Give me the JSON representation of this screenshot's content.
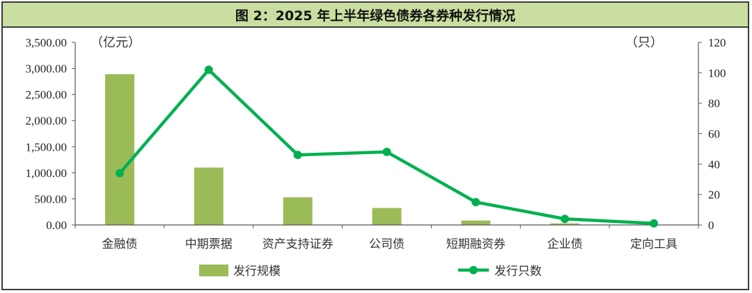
{
  "title": "图 2：2025 年上半年绿色债券各券种发行情况",
  "chart_data": {
    "type": "bar+line",
    "categories": [
      "金融债",
      "中期票据",
      "资产支持证券",
      "公司债",
      "短期融资券",
      "企业债",
      "定向工具"
    ],
    "series": [
      {
        "name": "发行规模",
        "type": "bar",
        "axis": "left",
        "color": "#9bbb59",
        "values": [
          2890,
          1100,
          530,
          325,
          85,
          30,
          5
        ]
      },
      {
        "name": "发行只数",
        "type": "line",
        "axis": "right",
        "color": "#00b050",
        "values": [
          34,
          102,
          46,
          48,
          15,
          4,
          1
        ]
      }
    ],
    "y_left": {
      "unit": "（亿元）",
      "ylim": [
        0,
        3500
      ],
      "ticks": [
        "0.00",
        "500.00",
        "1,000.00",
        "1,500.00",
        "2,000.00",
        "2,500.00",
        "3,000.00",
        "3,500.00"
      ]
    },
    "y_right": {
      "unit": "（只）",
      "ylim": [
        0,
        120
      ],
      "ticks": [
        "0",
        "20",
        "40",
        "60",
        "80",
        "100",
        "120"
      ]
    },
    "legend_position": "bottom",
    "grid": false
  }
}
